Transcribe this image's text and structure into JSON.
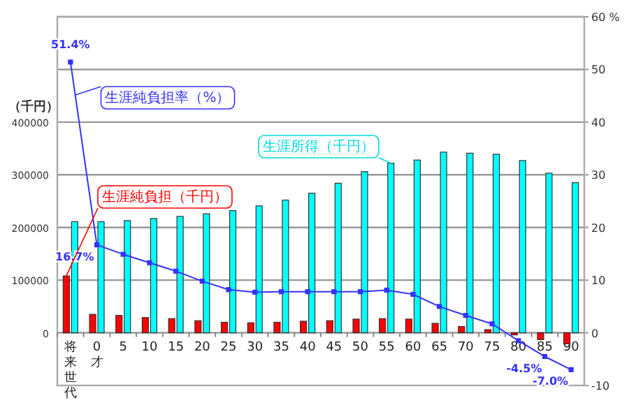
{
  "chart_data": {
    "type": "bar",
    "categories": [
      "将来世代",
      "0才",
      "5",
      "10",
      "15",
      "20",
      "25",
      "30",
      "35",
      "40",
      "45",
      "50",
      "55",
      "60",
      "65",
      "70",
      "75",
      "80",
      "85",
      "90"
    ],
    "ylabel": "（千円）",
    "ylim": [
      -100000,
      600000
    ],
    "yticks": [
      0,
      100000,
      200000,
      300000,
      400000,
      {
        "value": 500000,
        "label": null
      },
      {
        "value": 600000,
        "label": null
      }
    ],
    "y2lim": [
      -10,
      60
    ],
    "y2ticks": [
      -10,
      0,
      10,
      20,
      30,
      40,
      50,
      {
        "value": 60,
        "label": "60 %"
      }
    ],
    "grid": "y",
    "series": [
      {
        "name": "生涯純負担（千円）",
        "color": "#ff0000",
        "values": [
          108000,
          35000,
          33000,
          29000,
          27000,
          23000,
          20000,
          19000,
          20000,
          22000,
          23000,
          26000,
          27000,
          26000,
          18000,
          12000,
          6000,
          -4000,
          -13000,
          -21000
        ]
      },
      {
        "name": "生涯所得（千円）",
        "color": "#00ffff",
        "values": [
          211000,
          211000,
          213000,
          217000,
          221000,
          226000,
          232000,
          241000,
          252000,
          265000,
          284000,
          306000,
          322000,
          328000,
          343000,
          341000,
          339000,
          327000,
          303000,
          285000
        ]
      },
      {
        "name": "生涯純負担率（%）",
        "type": "line",
        "axis": "y2",
        "color": "#3333ff",
        "marker": "square",
        "values": [
          51.4,
          16.7,
          14.9,
          13.3,
          11.7,
          9.8,
          8.2,
          7.7,
          7.8,
          7.8,
          7.8,
          7.8,
          8.1,
          7.3,
          5.0,
          3.3,
          1.7,
          -1.5,
          -4.5,
          -7.0
        ],
        "value_labels": [
          "51.4%",
          "16.7%",
          null,
          null,
          null,
          null,
          null,
          null,
          null,
          null,
          null,
          null,
          null,
          null,
          null,
          null,
          null,
          null,
          "-4.5%",
          "-7.0%"
        ]
      }
    ]
  }
}
